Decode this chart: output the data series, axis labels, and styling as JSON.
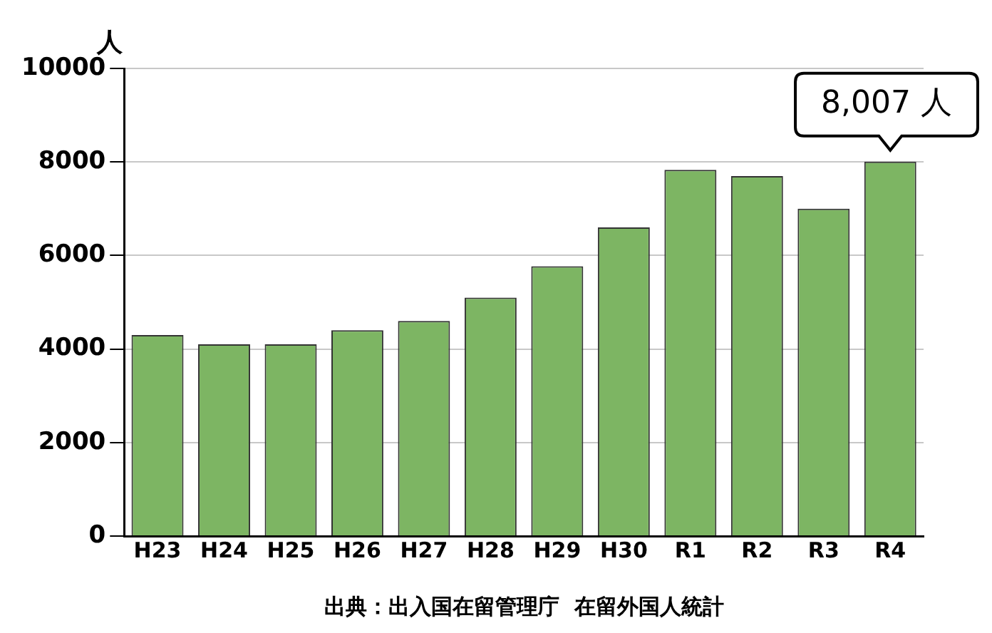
{
  "chart_data": {
    "type": "bar",
    "ylabel": "人",
    "categories": [
      "H23",
      "H24",
      "H25",
      "H26",
      "H27",
      "H28",
      "H29",
      "H30",
      "R1",
      "R2",
      "R3",
      "R4"
    ],
    "values": [
      4300,
      4100,
      4100,
      4400,
      4600,
      5100,
      5770,
      6600,
      7830,
      7700,
      7000,
      8007
    ],
    "color": "#7db563",
    "ylim": [
      0,
      10000
    ],
    "yticks": [
      0,
      2000,
      4000,
      6000,
      8000,
      10000
    ],
    "grid": "y",
    "annotations": [
      {
        "text": "8,007 人",
        "x": "R4",
        "y": 8007
      },
      "出典：出入国在留管理庁  在留外国人統計"
    ]
  }
}
